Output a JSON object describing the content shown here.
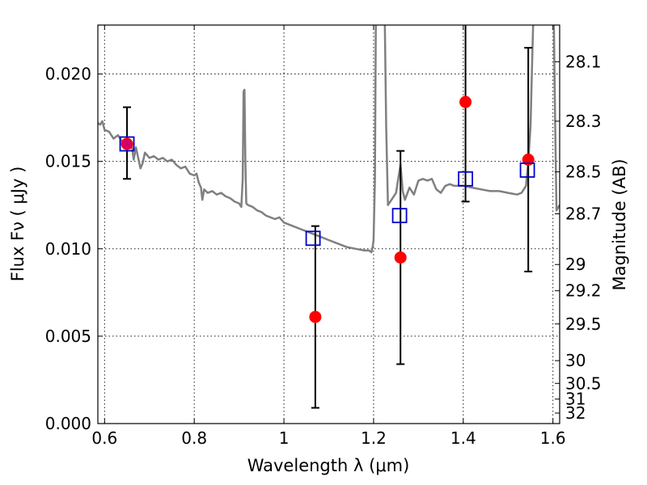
{
  "chart_data": {
    "type": "scatter",
    "xlabel": "Wavelength  λ (μm)",
    "ylabel": "Flux  Fν  ( μJy )",
    "ylabel_right": "Magnitude (AB)",
    "xlim": [
      0.585,
      1.615
    ],
    "ylim": [
      0.0,
      0.0228
    ],
    "x_ticks": [
      0.6,
      0.8,
      1.0,
      1.2,
      1.4,
      1.6
    ],
    "x_tick_labels": [
      "0.6",
      "0.8",
      "1",
      "1.2",
      "1.4",
      "1.6"
    ],
    "y_ticks": [
      0.0,
      0.005,
      0.01,
      0.015,
      0.02
    ],
    "y_tick_labels": [
      "0.000",
      "0.005",
      "0.010",
      "0.015",
      "0.020"
    ],
    "right_ticks": [
      {
        "label": "28.1",
        "flux": 0.0207
      },
      {
        "label": "28.3",
        "flux": 0.0173
      },
      {
        "label": "28.5",
        "flux": 0.0144
      },
      {
        "label": "28.7",
        "flux": 0.012
      },
      {
        "label": "29",
        "flux": 0.0091
      },
      {
        "label": "29.2",
        "flux": 0.0076
      },
      {
        "label": "29.5",
        "flux": 0.0057
      },
      {
        "label": "30",
        "flux": 0.0036
      },
      {
        "label": "30.5",
        "flux": 0.0023
      },
      {
        "label": "31",
        "flux": 0.0014
      },
      {
        "label": "32",
        "flux": 0.0006
      }
    ],
    "grid": true,
    "colors": {
      "sed_line": "#808080",
      "observed": "#ff0000",
      "model": "#0000cc",
      "errorbar": "#000000"
    },
    "series": [
      {
        "kind": "line",
        "points": [
          [
            0.585,
            0.0172
          ],
          [
            0.59,
            0.0171
          ],
          [
            0.595,
            0.0173
          ],
          [
            0.6,
            0.0168
          ],
          [
            0.61,
            0.0167
          ],
          [
            0.62,
            0.0163
          ],
          [
            0.63,
            0.0165
          ],
          [
            0.64,
            0.0161
          ],
          [
            0.65,
            0.0158
          ],
          [
            0.66,
            0.016
          ],
          [
            0.665,
            0.0151
          ],
          [
            0.67,
            0.0158
          ],
          [
            0.675,
            0.0152
          ],
          [
            0.68,
            0.0146
          ],
          [
            0.685,
            0.0149
          ],
          [
            0.69,
            0.0155
          ],
          [
            0.7,
            0.0152
          ],
          [
            0.71,
            0.0153
          ],
          [
            0.72,
            0.0151
          ],
          [
            0.73,
            0.0152
          ],
          [
            0.74,
            0.015
          ],
          [
            0.75,
            0.0151
          ],
          [
            0.76,
            0.0148
          ],
          [
            0.77,
            0.0146
          ],
          [
            0.78,
            0.0147
          ],
          [
            0.79,
            0.0143
          ],
          [
            0.8,
            0.0142
          ],
          [
            0.805,
            0.0143
          ],
          [
            0.81,
            0.0138
          ],
          [
            0.815,
            0.0135
          ],
          [
            0.818,
            0.0128
          ],
          [
            0.822,
            0.0134
          ],
          [
            0.83,
            0.0132
          ],
          [
            0.84,
            0.0133
          ],
          [
            0.85,
            0.0131
          ],
          [
            0.86,
            0.0132
          ],
          [
            0.87,
            0.013
          ],
          [
            0.88,
            0.0129
          ],
          [
            0.89,
            0.0127
          ],
          [
            0.9,
            0.0126
          ],
          [
            0.905,
            0.0124
          ],
          [
            0.908,
            0.014
          ],
          [
            0.91,
            0.019
          ],
          [
            0.912,
            0.0191
          ],
          [
            0.914,
            0.015
          ],
          [
            0.916,
            0.0126
          ],
          [
            0.92,
            0.0125
          ],
          [
            0.93,
            0.0124
          ],
          [
            0.94,
            0.0122
          ],
          [
            0.95,
            0.0121
          ],
          [
            0.96,
            0.0119
          ],
          [
            0.97,
            0.0118
          ],
          [
            0.98,
            0.0117
          ],
          [
            0.99,
            0.0118
          ],
          [
            1.0,
            0.0115
          ],
          [
            1.02,
            0.0113
          ],
          [
            1.04,
            0.0111
          ],
          [
            1.06,
            0.0109
          ],
          [
            1.08,
            0.0107
          ],
          [
            1.1,
            0.0105
          ],
          [
            1.12,
            0.0103
          ],
          [
            1.14,
            0.0101
          ],
          [
            1.16,
            0.01
          ],
          [
            1.18,
            0.0099
          ],
          [
            1.19,
            0.0099
          ],
          [
            1.195,
            0.0098
          ],
          [
            1.198,
            0.0101
          ],
          [
            1.2,
            0.0105
          ],
          [
            1.203,
            0.014
          ],
          [
            1.205,
            0.023
          ],
          [
            1.225,
            0.023
          ],
          [
            1.228,
            0.017
          ],
          [
            1.232,
            0.0125
          ],
          [
            1.24,
            0.0128
          ],
          [
            1.25,
            0.0132
          ],
          [
            1.255,
            0.014
          ],
          [
            1.26,
            0.0148
          ],
          [
            1.265,
            0.0133
          ],
          [
            1.27,
            0.0128
          ],
          [
            1.28,
            0.0135
          ],
          [
            1.29,
            0.0131
          ],
          [
            1.3,
            0.0139
          ],
          [
            1.31,
            0.014
          ],
          [
            1.32,
            0.0139
          ],
          [
            1.33,
            0.014
          ],
          [
            1.34,
            0.0134
          ],
          [
            1.35,
            0.0132
          ],
          [
            1.36,
            0.0136
          ],
          [
            1.37,
            0.0137
          ],
          [
            1.38,
            0.0136
          ],
          [
            1.4,
            0.0136
          ],
          [
            1.42,
            0.0135
          ],
          [
            1.44,
            0.0134
          ],
          [
            1.46,
            0.0133
          ],
          [
            1.48,
            0.0133
          ],
          [
            1.5,
            0.0132
          ],
          [
            1.52,
            0.0131
          ],
          [
            1.53,
            0.0132
          ],
          [
            1.54,
            0.0136
          ],
          [
            1.545,
            0.015
          ],
          [
            1.55,
            0.017
          ],
          [
            1.553,
            0.02
          ],
          [
            1.556,
            0.023
          ],
          [
            1.602,
            0.023
          ],
          [
            1.605,
            0.017
          ],
          [
            1.608,
            0.0122
          ],
          [
            1.615,
            0.0125
          ]
        ]
      },
      {
        "kind": "observed",
        "points": [
          {
            "x": 0.65,
            "y": 0.016,
            "lo": 0.014,
            "hi": 0.0181
          },
          {
            "x": 1.07,
            "y": 0.0061,
            "lo": 0.0009,
            "hi": 0.0113
          },
          {
            "x": 1.26,
            "y": 0.0095,
            "lo": 0.0034,
            "hi": 0.0156
          },
          {
            "x": 1.405,
            "y": 0.0184,
            "lo": 0.0127,
            "hi": 0.023
          },
          {
            "x": 1.545,
            "y": 0.0151,
            "lo": 0.0087,
            "hi": 0.0215
          }
        ]
      },
      {
        "kind": "model",
        "points": [
          {
            "x": 0.65,
            "y": 0.016
          },
          {
            "x": 1.065,
            "y": 0.0106
          },
          {
            "x": 1.258,
            "y": 0.0119
          },
          {
            "x": 1.405,
            "y": 0.014
          },
          {
            "x": 1.543,
            "y": 0.0145
          }
        ]
      }
    ]
  }
}
